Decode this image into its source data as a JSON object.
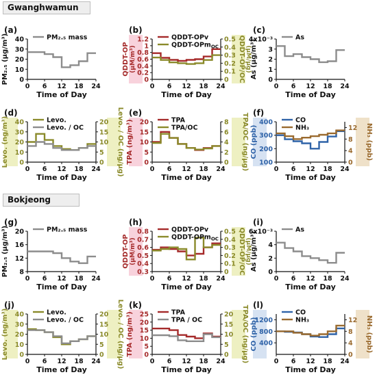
{
  "sites": [
    "Gwanghwamun",
    "Bokjeong"
  ],
  "colors": {
    "gray": "#8c8c8c",
    "dark_red": "#a52a2a",
    "olive": "#8a8a2a",
    "blue": "#2f63a8",
    "brown": "#9a6a2e",
    "pm_label": "#111111",
    "pink_band": "#f8d2dc",
    "olive_band": "#eef0c2",
    "blue_band": "#d6e2f2",
    "tan_band": "#efe1c9"
  },
  "chart_data": [
    {
      "id": "a",
      "panel_label": "(a)",
      "type": "line",
      "site": "Gwanghwamun",
      "xlabel": "Time of Day",
      "xlim": [
        0,
        24
      ],
      "xticks": [
        0,
        6,
        12,
        18,
        24
      ],
      "ylabel": "PM₂.₅ (μg/m³)",
      "ylim": [
        0,
        40
      ],
      "yticks": [
        0,
        10,
        20,
        30,
        40
      ],
      "ylabel_color": "pm_label",
      "series": [
        {
          "name": "PM₂.₅ mass",
          "color": "gray",
          "axis": "left",
          "x": [
            0,
            3,
            6,
            9,
            12,
            15,
            18,
            21
          ],
          "values": [
            27,
            27,
            25,
            22,
            12,
            14,
            18,
            26
          ]
        }
      ]
    },
    {
      "id": "b",
      "panel_label": "(b)",
      "type": "line",
      "site": "Gwanghwamun",
      "xlabel": "Time of Day",
      "xlim": [
        0,
        24
      ],
      "xticks": [
        0,
        6,
        12,
        18,
        24
      ],
      "ylabel": "QDDT-OP",
      "ylabel_unit": "(μM/m³)",
      "ylim": [
        0,
        1.2
      ],
      "yticks": [
        0,
        0.2,
        0.4,
        0.6,
        0.8,
        1.0,
        1.2
      ],
      "ylabel_color": "dark_red",
      "left_band": "pink_band",
      "y2label": "QDDT-OP/OC",
      "y2label_unit": "(μM/μg)",
      "y2lim": [
        0,
        0.5
      ],
      "y2ticks": [
        0,
        0.1,
        0.2,
        0.3,
        0.4,
        0.5
      ],
      "y2label_color": "olive",
      "right_band": "olive_band",
      "series": [
        {
          "name": "QDDT-OPv",
          "color": "dark_red",
          "axis": "left",
          "x": [
            0,
            3,
            6,
            9,
            12,
            15,
            18,
            21
          ],
          "values": [
            0.78,
            0.64,
            0.58,
            0.55,
            0.58,
            0.6,
            0.68,
            0.9
          ]
        },
        {
          "name": "QDDT-OPm",
          "name_sub": "OC",
          "color": "olive",
          "axis": "right",
          "x": [
            0,
            3,
            6,
            9,
            12,
            15,
            18,
            21
          ],
          "values": [
            0.27,
            0.24,
            0.21,
            0.2,
            0.19,
            0.2,
            0.24,
            0.3
          ]
        }
      ]
    },
    {
      "id": "c",
      "panel_label": "(c)",
      "type": "line",
      "site": "Gwanghwamun",
      "xlabel": "Time of Day",
      "xlim": [
        0,
        24
      ],
      "xticks": [
        0,
        6,
        12,
        18,
        24
      ],
      "ylabel": "As (μg/m³)",
      "ylim": [
        0,
        4
      ],
      "yticks": [
        0,
        1,
        2,
        3,
        4
      ],
      "ytick_last_label": "4x10⁻³",
      "ylabel_color": "pm_label",
      "series": [
        {
          "name": "As",
          "color": "gray",
          "axis": "left",
          "x": [
            0,
            3,
            6,
            9,
            12,
            15,
            18,
            21
          ],
          "values": [
            3.3,
            2.3,
            2.5,
            2.2,
            2.0,
            1.7,
            1.8,
            2.9
          ]
        }
      ]
    },
    {
      "id": "d",
      "panel_label": "(d)",
      "type": "line",
      "site": "Gwanghwamun",
      "xlabel": "Time of Day",
      "xlim": [
        0,
        24
      ],
      "xticks": [
        0,
        6,
        12,
        18,
        24
      ],
      "ylabel": "Levo. (ng/m³)",
      "ylim": [
        0,
        40
      ],
      "yticks": [
        0,
        10,
        20,
        30,
        40
      ],
      "ylabel_color": "olive",
      "left_band": "olive_band",
      "y2label": "Levo. / OC (ng/μg)",
      "y2lim": [
        0,
        20
      ],
      "y2ticks": [
        0,
        5,
        10,
        15,
        20
      ],
      "y2label_color": "olive",
      "right_band": "olive_band",
      "series": [
        {
          "name": "Levo.",
          "color": "olive",
          "axis": "left",
          "x": [
            0,
            3,
            6,
            9,
            12,
            15,
            18,
            21
          ],
          "values": [
            20,
            28,
            22,
            16,
            13,
            12,
            14,
            18
          ]
        },
        {
          "name": "Levo. / OC",
          "color": "gray",
          "axis": "right",
          "x": [
            0,
            3,
            6,
            9,
            12,
            15,
            18,
            21
          ],
          "values": [
            8,
            10,
            9,
            7,
            6,
            6,
            7,
            8
          ]
        }
      ]
    },
    {
      "id": "e",
      "panel_label": "(e)",
      "type": "line",
      "site": "Gwanghwamun",
      "xlabel": "Time of Day",
      "xlim": [
        0,
        24
      ],
      "xticks": [
        0,
        6,
        12,
        18,
        24
      ],
      "ylabel": "TPA (ng/m³)",
      "ylim": [
        0,
        20
      ],
      "yticks": [
        0,
        5,
        10,
        15,
        20
      ],
      "ylabel_color": "dark_red",
      "left_band": "pink_band",
      "y2label": "TPA/OC (ng/μg)",
      "y2lim": [
        0,
        8
      ],
      "y2ticks": [
        0,
        2,
        4,
        6,
        8
      ],
      "y2label_color": "olive",
      "right_band": "olive_band",
      "series": [
        {
          "name": "TPA",
          "color": "dark_red",
          "axis": "left",
          "x": [
            0,
            3,
            6,
            9,
            12,
            15,
            18,
            21
          ],
          "values": [
            10,
            15,
            12,
            9,
            7,
            6,
            7,
            8
          ]
        },
        {
          "name": "TPA/OC",
          "color": "olive",
          "axis": "right",
          "x": [
            0,
            3,
            6,
            9,
            12,
            15,
            18,
            21
          ],
          "values": [
            3.8,
            5.6,
            4.8,
            3.6,
            2.8,
            2.5,
            2.7,
            3.2
          ]
        }
      ]
    },
    {
      "id": "f",
      "panel_label": "(f)",
      "type": "line",
      "site": "Gwanghwamun",
      "xlabel": "Time of Day",
      "xlim": [
        0,
        24
      ],
      "xticks": [
        0,
        6,
        12,
        18,
        24
      ],
      "ylabel": "CO (ppb)",
      "ylim": [
        100,
        400
      ],
      "yticks": [
        100,
        200,
        300,
        400
      ],
      "ylabel_color": "blue",
      "left_band": "blue_band",
      "y2label": "NH₃ (ppb)",
      "y2lim": [
        0,
        14
      ],
      "y2ticks": [
        0,
        4,
        8,
        12
      ],
      "y2label_color": "brown",
      "right_band": "tan_band",
      "series": [
        {
          "name": "CO",
          "color": "blue",
          "axis": "left",
          "x": [
            0,
            3,
            6,
            9,
            12,
            15,
            18,
            21
          ],
          "values": [
            300,
            270,
            255,
            240,
            200,
            250,
            290,
            330
          ]
        },
        {
          "name": "NH₃",
          "color": "brown",
          "axis": "right",
          "x": [
            0,
            3,
            6,
            9,
            12,
            15,
            18,
            21
          ],
          "values": [
            10,
            9,
            8,
            8.5,
            9,
            9.5,
            10,
            11
          ]
        }
      ]
    },
    {
      "id": "g",
      "panel_label": "(g)",
      "type": "line",
      "site": "Bokjeong",
      "xlabel": "Time of Day",
      "xlim": [
        0,
        24
      ],
      "xticks": [
        0,
        6,
        12,
        18,
        24
      ],
      "ylabel": "PM₂.₅ (μg/m³)",
      "ylim": [
        8,
        20
      ],
      "yticks": [
        8,
        12,
        16,
        20
      ],
      "ylabel_color": "pm_label",
      "series": [
        {
          "name": "PM₂.₅ mass",
          "color": "gray",
          "axis": "left",
          "x": [
            0,
            3,
            6,
            9,
            12,
            15,
            18,
            21
          ],
          "values": [
            14,
            14,
            14,
            13.5,
            12,
            11,
            10.5,
            12.5
          ]
        }
      ]
    },
    {
      "id": "h",
      "panel_label": "(h)",
      "type": "line",
      "site": "Bokjeong",
      "xlabel": "Time of Day",
      "xlim": [
        0,
        24
      ],
      "xticks": [
        0,
        6,
        12,
        18,
        24
      ],
      "ylabel": "QDDT-OP",
      "ylabel_unit": "(μM/m³)",
      "ylim": [
        0.3,
        0.8
      ],
      "yticks": [
        0.3,
        0.4,
        0.5,
        0.6,
        0.7,
        0.8
      ],
      "ylabel_color": "dark_red",
      "left_band": "pink_band",
      "y2label": "QDDT-OP/OC",
      "y2label_unit": "(μM/μg)",
      "y2lim": [
        0,
        0.5
      ],
      "y2ticks": [
        0,
        0.1,
        0.2,
        0.3,
        0.4,
        0.5
      ],
      "y2label_color": "olive",
      "right_band": "olive_band",
      "series": [
        {
          "name": "QDDT-OPv",
          "color": "dark_red",
          "axis": "left",
          "x": [
            0,
            3,
            6,
            9,
            12,
            15,
            18,
            21
          ],
          "values": [
            0.57,
            0.6,
            0.58,
            0.55,
            0.5,
            0.52,
            0.6,
            0.65
          ]
        },
        {
          "name": "QDDT-OPm",
          "name_sub": "OC",
          "color": "olive",
          "axis": "right",
          "x": [
            0,
            3,
            6,
            9,
            12,
            15,
            18,
            21
          ],
          "values": [
            0.26,
            0.28,
            0.3,
            0.28,
            0.15,
            0.42,
            0.3,
            0.33
          ]
        }
      ]
    },
    {
      "id": "i",
      "panel_label": "(i)",
      "type": "line",
      "site": "Bokjeong",
      "xlabel": "Time of Day",
      "xlim": [
        0,
        24
      ],
      "xticks": [
        0,
        6,
        12,
        18,
        24
      ],
      "ylabel": "As (μg/m³)",
      "ylim": [
        0,
        6
      ],
      "yticks": [
        0,
        2,
        4,
        6
      ],
      "ytick_last_label": "6x10⁻³",
      "ylabel_color": "pm_label",
      "series": [
        {
          "name": "As",
          "color": "gray",
          "axis": "left",
          "x": [
            0,
            3,
            6,
            9,
            12,
            15,
            18,
            21
          ],
          "values": [
            4.3,
            3.5,
            3.0,
            2.3,
            2.0,
            1.7,
            1.3,
            2.8
          ]
        }
      ]
    },
    {
      "id": "j",
      "panel_label": "(j)",
      "type": "line",
      "site": "Bokjeong",
      "xlabel": "Time of Day",
      "xlim": [
        0,
        24
      ],
      "xticks": [
        0,
        6,
        12,
        18,
        24
      ],
      "ylabel": "Levo. (ng/m³)",
      "ylim": [
        0,
        40
      ],
      "yticks": [
        0,
        10,
        20,
        30,
        40
      ],
      "ylabel_color": "olive",
      "left_band": "olive_band",
      "y2label": "Levo. / OC (ng/μg)",
      "y2lim": [
        0,
        20
      ],
      "y2ticks": [
        0,
        5,
        10,
        15,
        20
      ],
      "y2label_color": "olive",
      "right_band": "olive_band",
      "series": [
        {
          "name": "Levo.",
          "color": "olive",
          "axis": "left",
          "x": [
            0,
            3,
            6,
            9,
            12,
            15,
            18,
            21
          ],
          "values": [
            25,
            24,
            22,
            17,
            10,
            13,
            15,
            18
          ]
        },
        {
          "name": "Levo. / OC",
          "color": "gray",
          "axis": "right",
          "x": [
            0,
            3,
            6,
            9,
            12,
            15,
            18,
            21
          ],
          "values": [
            12,
            12,
            11,
            9,
            5.5,
            6.5,
            7.5,
            9
          ]
        }
      ]
    },
    {
      "id": "k",
      "panel_label": "(k)",
      "type": "line",
      "site": "Bokjeong",
      "xlabel": "Time of Day",
      "xlim": [
        0,
        24
      ],
      "xticks": [
        0,
        6,
        12,
        18,
        24
      ],
      "ylabel": "TPA (ng/m³)",
      "ylim": [
        0,
        25
      ],
      "yticks": [
        0,
        5,
        10,
        15,
        20,
        25
      ],
      "ylabel_color": "dark_red",
      "left_band": "pink_band",
      "y2label": "TPA/OC (ng/μg)",
      "y2lim": [
        0,
        20
      ],
      "y2ticks": [
        0,
        5,
        10,
        15,
        20
      ],
      "y2label_color": "olive",
      "right_band": "olive_band",
      "series": [
        {
          "name": "TPA",
          "color": "dark_red",
          "axis": "left",
          "x": [
            0,
            3,
            6,
            9,
            12,
            15,
            18,
            21
          ],
          "values": [
            16,
            16,
            15,
            12,
            11,
            10,
            13,
            11
          ]
        },
        {
          "name": "TPA / OC",
          "color": "gray",
          "axis": "right",
          "x": [
            0,
            3,
            6,
            9,
            12,
            15,
            18,
            21
          ],
          "values": [
            9.5,
            9.5,
            9,
            7,
            6.5,
            6.5,
            10,
            8.5
          ]
        }
      ]
    },
    {
      "id": "l",
      "panel_label": "(l)",
      "type": "line",
      "site": "Bokjeong",
      "xlabel": "Time of Day",
      "xlim": [
        0,
        24
      ],
      "xticks": [
        0,
        6,
        12,
        18,
        24
      ],
      "ylabel": "CO (ppb)",
      "ylim": [
        0,
        1400
      ],
      "yticks": [
        400,
        800,
        1200
      ],
      "ylabel_color": "blue",
      "left_band": "blue_band",
      "y2label": "NH₃ (ppb)",
      "y2lim": [
        0,
        14
      ],
      "y2ticks": [
        0,
        4,
        8,
        12
      ],
      "y2label_color": "brown",
      "right_band": "tan_band",
      "series": [
        {
          "name": "CO",
          "color": "blue",
          "axis": "left",
          "x": [
            0,
            3,
            6,
            9,
            12,
            15,
            18,
            21
          ],
          "values": [
            800,
            780,
            760,
            700,
            620,
            600,
            700,
            900
          ]
        },
        {
          "name": "NH₃",
          "color": "brown",
          "axis": "right",
          "x": [
            0,
            3,
            6,
            9,
            12,
            15,
            18,
            21
          ],
          "values": [
            8,
            8,
            7.5,
            7,
            6.5,
            7,
            8,
            10
          ]
        }
      ]
    }
  ]
}
